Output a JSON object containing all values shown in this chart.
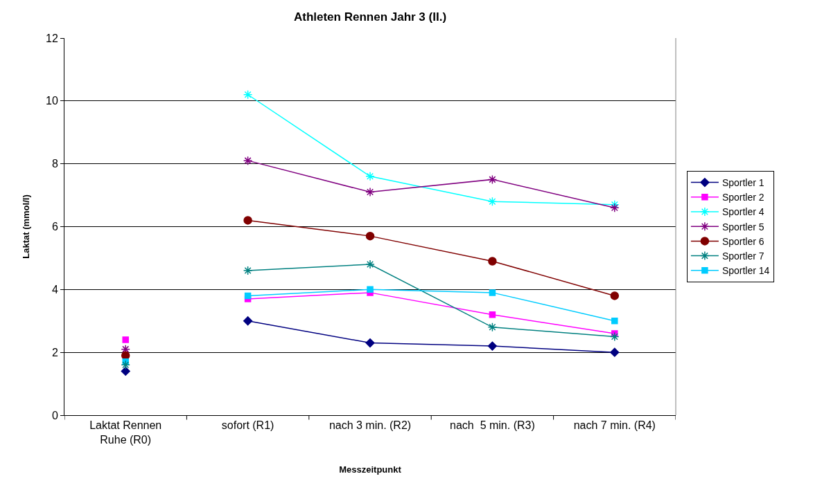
{
  "chart_data": {
    "type": "line",
    "title": "Athleten Rennen Jahr 3 (II.)",
    "xlabel": "Messzeitpunkt",
    "ylabel": "Laktat (mmol/l)",
    "categories": [
      "Laktat Rennen Ruhe (R0)",
      "sofort (R1)",
      "nach 3 min. (R2)",
      "nach  5 min. (R3)",
      "nach 7 min. (R4)"
    ],
    "ylim": [
      0,
      12
    ],
    "yticks": [
      0,
      2,
      4,
      6,
      8,
      10,
      12
    ],
    "grid": "y",
    "legend": "right",
    "series": [
      {
        "name": "Sportler 1",
        "color": "#000080",
        "marker": "diamond",
        "values": [
          null,
          3.0,
          2.3,
          2.2,
          2.0
        ]
      },
      {
        "name": "Sportler 2",
        "color": "#ff00ff",
        "marker": "square",
        "values": [
          null,
          3.7,
          3.9,
          3.2,
          2.6
        ]
      },
      {
        "name": "Sportler 4",
        "color": "#00ffff",
        "marker": "cross",
        "values": [
          null,
          10.2,
          7.6,
          6.8,
          6.7
        ]
      },
      {
        "name": "Sportler 5",
        "color": "#800080",
        "marker": "cross",
        "values": [
          null,
          8.1,
          7.1,
          7.5,
          6.6
        ]
      },
      {
        "name": "Sportler 6",
        "color": "#800000",
        "marker": "circle",
        "values": [
          null,
          6.2,
          5.7,
          4.9,
          3.8
        ]
      },
      {
        "name": "Sportler 7",
        "color": "#008080",
        "marker": "cross",
        "values": [
          null,
          4.6,
          4.8,
          2.8,
          2.5
        ]
      },
      {
        "name": "Sportler 14",
        "color": "#00ccff",
        "marker": "square",
        "values": [
          null,
          3.8,
          4.0,
          3.9,
          3.0
        ]
      },
      {
        "type": "scatter",
        "color": "#000080",
        "marker": "diamond",
        "values": [
          1.4,
          null,
          null,
          null,
          null
        ]
      },
      {
        "type": "scatter",
        "color": "#ff00ff",
        "marker": "square",
        "values": [
          2.4,
          null,
          null,
          null,
          null
        ]
      },
      {
        "type": "scatter",
        "color": "#800080",
        "marker": "cross",
        "values": [
          2.1,
          null,
          null,
          null,
          null
        ]
      },
      {
        "type": "scatter",
        "color": "#800000",
        "marker": "circle",
        "values": [
          1.9,
          null,
          null,
          null,
          null
        ]
      },
      {
        "type": "scatter",
        "color": "#00ccff",
        "marker": "square",
        "values": [
          1.7,
          null,
          null,
          null,
          null
        ]
      },
      {
        "type": "scatter",
        "color": "#008080",
        "marker": "cross",
        "values": [
          1.6,
          null,
          null,
          null,
          null
        ]
      }
    ]
  }
}
